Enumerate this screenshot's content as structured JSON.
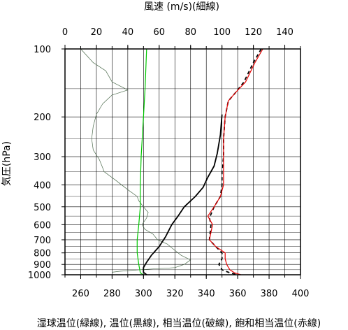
{
  "chart_data": {
    "type": "line",
    "title_top": "風速 (m/s)(細線)",
    "ylabel": "気圧(hPa)",
    "xlabel": "湿球温位(緑線), 温位(黒線), 相当温位(破線), 飽和相当温位(赤線)",
    "x_bottom": {
      "lim": [
        250,
        400
      ],
      "ticks": [
        260,
        280,
        300,
        320,
        340,
        360,
        380,
        400
      ]
    },
    "x_top": {
      "lim": [
        0,
        150
      ],
      "ticks": [
        0,
        20,
        40,
        60,
        80,
        100,
        120,
        140
      ]
    },
    "y": {
      "scale": "log",
      "inverted": true,
      "lim": [
        100,
        1000
      ],
      "ticks": [
        100,
        200,
        300,
        400,
        500,
        600,
        700,
        800,
        900,
        1000
      ],
      "grid_minor": [
        150,
        250,
        350,
        450,
        550,
        650,
        750,
        850,
        950
      ]
    },
    "grid": true,
    "series": [
      {
        "key": "wind",
        "axis": "top",
        "color": "#4d6b4d",
        "style": "thin",
        "points": [
          [
            10,
            100
          ],
          [
            18,
            115
          ],
          [
            26,
            125
          ],
          [
            30,
            140
          ],
          [
            40,
            152
          ],
          [
            30,
            160
          ],
          [
            24,
            175
          ],
          [
            20,
            195
          ],
          [
            18,
            220
          ],
          [
            17,
            250
          ],
          [
            18,
            280
          ],
          [
            22,
            310
          ],
          [
            25,
            350
          ],
          [
            32,
            380
          ],
          [
            40,
            420
          ],
          [
            46,
            450
          ],
          [
            47,
            470
          ],
          [
            50,
            500
          ],
          [
            53,
            530
          ],
          [
            52,
            560
          ],
          [
            49,
            600
          ],
          [
            51,
            630
          ],
          [
            56,
            660
          ],
          [
            59,
            700
          ],
          [
            65,
            730
          ],
          [
            70,
            780
          ],
          [
            74,
            820
          ],
          [
            80,
            860
          ],
          [
            76,
            900
          ],
          [
            70,
            930
          ],
          [
            48,
            950
          ],
          [
            35,
            965
          ],
          [
            30,
            975
          ]
        ]
      },
      {
        "key": "wet_bulb_theta",
        "axis": "bottom",
        "color": "#00c800",
        "style": "solid",
        "points": [
          [
            302,
            100
          ],
          [
            301,
            150
          ],
          [
            300,
            200
          ],
          [
            298.5,
            300
          ],
          [
            298,
            400
          ],
          [
            298,
            500
          ],
          [
            297,
            600
          ],
          [
            296,
            700
          ],
          [
            296,
            800
          ],
          [
            297,
            900
          ],
          [
            298,
            980
          ],
          [
            300,
            1000
          ]
        ]
      },
      {
        "key": "theta",
        "axis": "bottom",
        "color": "#000000",
        "style": "thick",
        "points": [
          [
            350,
            195
          ],
          [
            349,
            240
          ],
          [
            347,
            290
          ],
          [
            345,
            330
          ],
          [
            341,
            370
          ],
          [
            338,
            410
          ],
          [
            333,
            450
          ],
          [
            326,
            500
          ],
          [
            322,
            550
          ],
          [
            318,
            600
          ],
          [
            314,
            680
          ],
          [
            310,
            750
          ],
          [
            305,
            820
          ],
          [
            302,
            880
          ],
          [
            300,
            930
          ],
          [
            300,
            975
          ],
          [
            302,
            1000
          ]
        ]
      },
      {
        "key": "theta_e",
        "axis": "bottom",
        "color": "#000000",
        "style": "dashed",
        "points": [
          [
            375,
            100
          ],
          [
            370,
            115
          ],
          [
            364,
            140
          ],
          [
            359,
            155
          ],
          [
            354,
            170
          ],
          [
            352,
            200
          ],
          [
            351,
            250
          ],
          [
            351,
            300
          ],
          [
            350,
            350
          ],
          [
            350,
            400
          ],
          [
            349,
            450
          ],
          [
            345,
            500
          ],
          [
            342,
            560
          ],
          [
            343,
            600
          ],
          [
            342,
            700
          ],
          [
            346,
            750
          ],
          [
            350,
            800
          ],
          [
            350,
            850
          ],
          [
            348,
            900
          ],
          [
            350,
            950
          ],
          [
            355,
            980
          ],
          [
            360,
            1000
          ]
        ]
      },
      {
        "key": "theta_es",
        "axis": "bottom",
        "color": "#e60000",
        "style": "solid",
        "points": [
          [
            376,
            100
          ],
          [
            371,
            115
          ],
          [
            365,
            140
          ],
          [
            359,
            155
          ],
          [
            354,
            170
          ],
          [
            352,
            200
          ],
          [
            351,
            250
          ],
          [
            351,
            300
          ],
          [
            351,
            350
          ],
          [
            351,
            400
          ],
          [
            349,
            450
          ],
          [
            345,
            500
          ],
          [
            341,
            550
          ],
          [
            344,
            600
          ],
          [
            342,
            700
          ],
          [
            346,
            750
          ],
          [
            352,
            800
          ],
          [
            352,
            850
          ],
          [
            353,
            900
          ],
          [
            355,
            950
          ],
          [
            358,
            980
          ],
          [
            362,
            1000
          ]
        ]
      }
    ]
  }
}
